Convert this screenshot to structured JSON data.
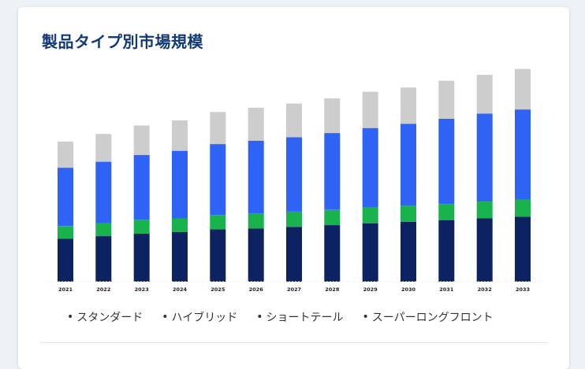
{
  "card": {
    "title": "製品タイプ別市場規模"
  },
  "chart_data": {
    "type": "bar",
    "stacked": true,
    "categories": [
      "2021",
      "2022",
      "2023",
      "2024",
      "2025",
      "2026",
      "2027",
      "2028",
      "2029",
      "2030",
      "2031",
      "2032",
      "2033"
    ],
    "series": [
      {
        "name": "スタンダード",
        "color": "#0d2260",
        "values": [
          51,
          54,
          57,
          59,
          62,
          63,
          65,
          67,
          69,
          71,
          73,
          75,
          77
        ]
      },
      {
        "name": "ハイブリッド",
        "color": "#18b34d",
        "values": [
          15,
          15,
          16,
          16,
          17,
          18,
          18,
          18,
          19,
          19,
          19,
          20,
          20
        ]
      },
      {
        "name": "ショートテール",
        "color": "#2f63f6",
        "values": [
          69,
          73,
          77,
          80,
          84,
          86,
          88,
          91,
          94,
          97,
          101,
          104,
          107
        ]
      },
      {
        "name": "スーパーロングフロント",
        "color": "#cdcdcd",
        "values": [
          31,
          33,
          35,
          36,
          38,
          39,
          40,
          41,
          43,
          43,
          45,
          46,
          48
        ]
      }
    ],
    "title": "",
    "xlabel": "",
    "ylabel": "",
    "ylim": [
      0,
      260
    ],
    "grid": false,
    "y_axis_visible": false,
    "legend_position": "bottom"
  }
}
